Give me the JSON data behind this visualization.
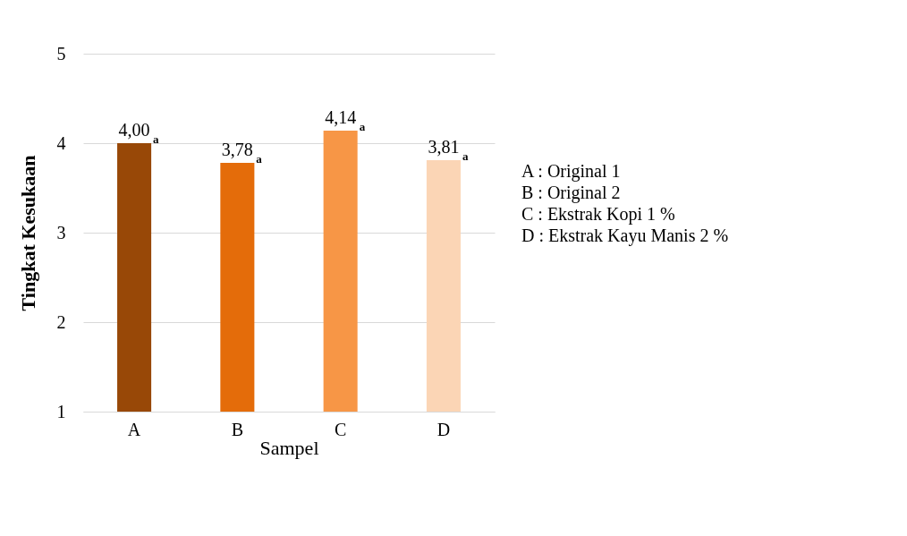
{
  "chart_data": {
    "type": "bar",
    "xlabel": "Sampel",
    "ylabel": "Tingkat Kesukaan",
    "categories": [
      "A",
      "B",
      "C",
      "D"
    ],
    "values": [
      4.0,
      3.78,
      4.14,
      3.81
    ],
    "colors": [
      "#984807",
      "#e46c0a",
      "#f79646",
      "#fbd5b5"
    ],
    "value_labels": [
      "4,00",
      "3,78",
      "4,14",
      "3,81"
    ],
    "ylim": [
      1,
      5
    ],
    "yticks": [
      1,
      2,
      3,
      4,
      5
    ],
    "grid": "y",
    "annotations": [
      {
        "text": "a",
        "x": "A",
        "y": 4.0
      },
      {
        "text": "a",
        "x": "B",
        "y": 3.78
      },
      {
        "text": "a",
        "x": "C",
        "y": 4.14
      },
      {
        "text": "a",
        "x": "D",
        "y": 3.81
      },
      "A : Original 1",
      "B : Original 2",
      "C : Ekstrak Kopi 1 %",
      "D : Ekstrak Kayu Manis 2 %"
    ]
  }
}
